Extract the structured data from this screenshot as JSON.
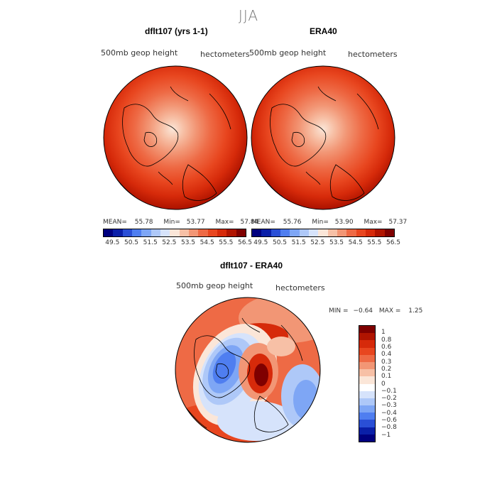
{
  "main_title": "JJA",
  "panels": [
    {
      "title": "dflt107 (yrs 1-1)",
      "field_label": "500mb geop height",
      "units_label": "hectometers",
      "stats": {
        "mean_label": "MEAN=",
        "mean": "55.78",
        "min_label": "Min=",
        "min": "53.77",
        "max_label": "Max=",
        "max": "57.84"
      }
    },
    {
      "title": "ERA40",
      "field_label": "500mb geop height",
      "units_label": "hectometers",
      "stats": {
        "mean_label": "MEAN=",
        "mean": "55.76",
        "min_label": "Min=",
        "min": "53.90",
        "max_label": "Max=",
        "max": "57.37"
      }
    }
  ],
  "horizontal_colorbar": {
    "labels": [
      "49.5",
      "50.5",
      "51.5",
      "52.5",
      "53.5",
      "54.5",
      "55.5",
      "56.5"
    ],
    "colors": [
      "#00007f",
      "#0a1fa8",
      "#2a4fd6",
      "#4f7ef0",
      "#7ea6f5",
      "#aec8f8",
      "#d6e3fb",
      "#fbe6d8",
      "#f7c0a6",
      "#f29675",
      "#ee6a45",
      "#e8461f",
      "#d62a0a",
      "#b01400",
      "#7f0000"
    ]
  },
  "difference_panel": {
    "title": "dflt107 - ERA40",
    "field_label": "500mb geop height",
    "units_label": "hectometers",
    "stats": {
      "min_label": "MIN =",
      "min": "−0.64",
      "max_label": "MAX =",
      "max": "1.25"
    }
  },
  "vertical_colorbar": {
    "labels": [
      "1",
      "0.8",
      "0.6",
      "0.4",
      "0.3",
      "0.2",
      "0.1",
      "0",
      "−0.1",
      "−0.2",
      "−0.3",
      "−0.4",
      "−0.6",
      "−0.8",
      "−1"
    ],
    "colors": [
      "#7f0000",
      "#b01400",
      "#d62a0a",
      "#e8461f",
      "#ee6a45",
      "#f29675",
      "#f7c0a6",
      "#fbe6d8",
      "#ffffff",
      "#d6e3fb",
      "#aec8f8",
      "#7ea6f5",
      "#4f7ef0",
      "#2a4fd6",
      "#0a1fa8",
      "#00007f"
    ]
  }
}
